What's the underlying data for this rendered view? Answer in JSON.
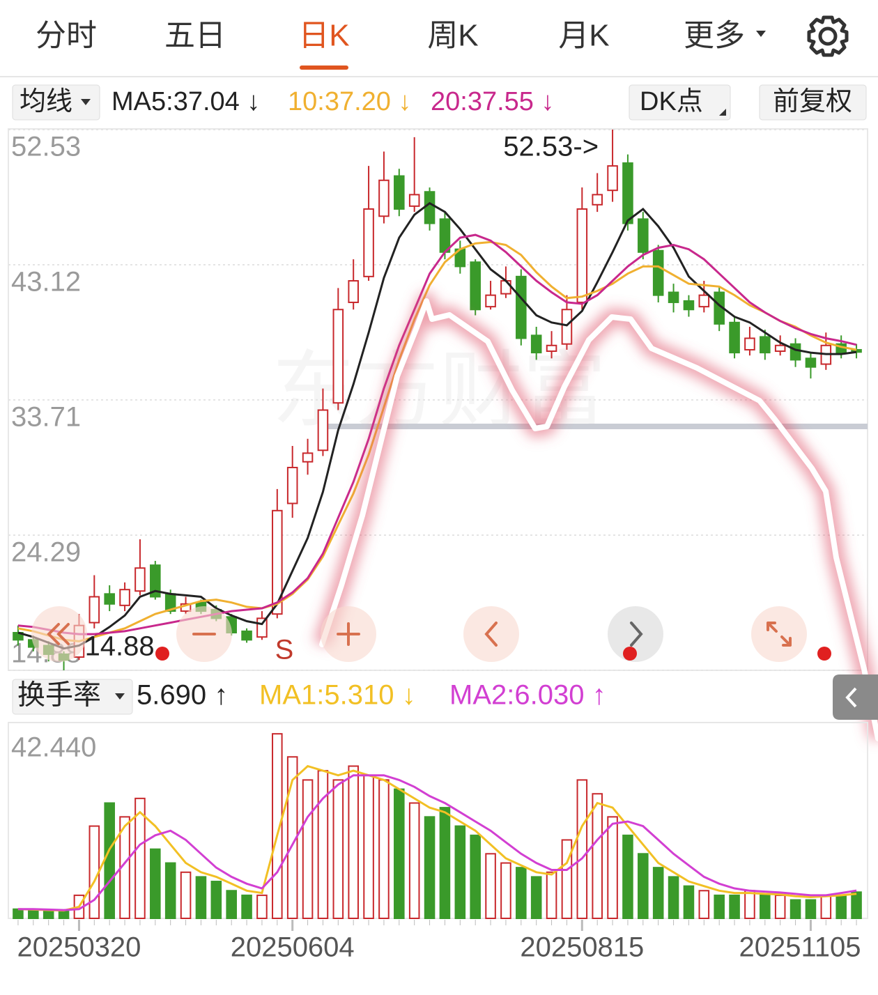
{
  "tabs": [
    "分时",
    "五日",
    "日K",
    "周K",
    "月K",
    "更多"
  ],
  "selected_tab": 2,
  "indicator_bar": {
    "selector": "均线",
    "ma5": "MA5:37.04 ↓",
    "ma10": "10:37.20 ↓",
    "ma20": "20:37.55 ↓",
    "dk": "DK点",
    "adjust": "前复权"
  },
  "volume_bar": {
    "selector": "换手率",
    "value": "5.690 ↑",
    "ma1": "MA1:5.310 ↓",
    "ma2": "MA2:6.030 ↑"
  },
  "watermark": "东方财富",
  "signal": "S",
  "chart_data": [
    {
      "type": "candlestick",
      "categories": [
        null,
        null,
        null,
        null,
        "20250320",
        null,
        null,
        null,
        null,
        null,
        null,
        null,
        null,
        null,
        null,
        null,
        null,
        null,
        "20250604",
        null,
        null,
        null,
        null,
        null,
        null,
        null,
        null,
        null,
        null,
        null,
        null,
        null,
        null,
        null,
        null,
        null,
        null,
        "20250815",
        null,
        null,
        null,
        null,
        null,
        null,
        null,
        null,
        null,
        null,
        null,
        null,
        null,
        null,
        "20251105",
        null,
        null,
        null
      ],
      "open": [
        17.5,
        17,
        16.6,
        16,
        15.8,
        18.2,
        20.2,
        19.4,
        20.4,
        22.2,
        20.2,
        19,
        19.6,
        19.1,
        18.6,
        17.6,
        17.2,
        18.8,
        26.5,
        29.4,
        30.2,
        33.5,
        40.5,
        42.3,
        46.5,
        49.3,
        47.2,
        48.2,
        46.3,
        44.2,
        43.3,
        40.2,
        41.1,
        42.3,
        38.2,
        37.1,
        37.6,
        40.5,
        47.3,
        48.3,
        50.2,
        46.3,
        44.1,
        41.2,
        40.6,
        40.2,
        41.2,
        39.1,
        37.2,
        38.1,
        37.1,
        37.6,
        36.6,
        36.2,
        37.6,
        37.2
      ],
      "high": [
        18,
        17.3,
        16.9,
        16.2,
        18.8,
        21.5,
        20.8,
        21,
        24,
        22.5,
        20.5,
        20,
        19.8,
        19.4,
        18.8,
        17.8,
        19,
        27.5,
        30.5,
        31,
        34.5,
        41.5,
        43.5,
        50,
        51,
        49.8,
        52,
        48.5,
        46.8,
        44.8,
        43.5,
        42,
        43,
        42.8,
        38.8,
        38.5,
        41,
        48.5,
        49.5,
        52.53,
        50.8,
        46.8,
        44.5,
        41.8,
        41,
        42,
        41.6,
        39.5,
        38.8,
        38.6,
        38.2,
        38,
        37,
        38.4,
        38.2,
        37.6
      ],
      "low": [
        16.6,
        16.2,
        15.5,
        14.88,
        15.6,
        17.8,
        19,
        19,
        20.1,
        19.8,
        18.8,
        18.8,
        18.8,
        18.3,
        17.3,
        16.8,
        17,
        18.5,
        25.5,
        28.5,
        29.8,
        33,
        40,
        42,
        46,
        46.5,
        46.8,
        45.5,
        43.5,
        42.5,
        39.6,
        40,
        40.8,
        37.5,
        36.5,
        36.6,
        37.2,
        40,
        46.8,
        47.5,
        45.5,
        43.5,
        40.5,
        39.8,
        39.5,
        39.8,
        38.5,
        36.6,
        36.8,
        36.5,
        36.8,
        36,
        35.2,
        35.8,
        36.6,
        36.6
      ],
      "close": [
        17,
        16.5,
        16,
        15.6,
        18,
        20,
        19.5,
        20.5,
        22,
        20,
        19,
        19.5,
        19,
        18.5,
        17.5,
        17,
        18.5,
        26,
        29,
        30,
        33,
        40,
        42,
        47,
        49,
        47,
        48,
        46,
        44,
        43,
        40,
        41,
        42,
        38,
        37,
        37.5,
        40,
        47,
        48,
        50,
        46,
        44,
        41,
        40.5,
        40,
        41,
        39,
        37,
        38,
        37,
        37.5,
        36.5,
        36,
        37.5,
        37,
        37.04
      ],
      "series": [
        {
          "color": "#222222",
          "values": [
            17.5,
            17.2,
            16.8,
            16.4,
            16.6,
            17.2,
            17.9,
            18.7,
            20,
            20.4,
            20.2,
            20.1,
            20,
            19.2,
            18.7,
            18.3,
            18.1,
            19.5,
            21.8,
            24.1,
            27.3,
            31.6,
            34.8,
            38.4,
            42.2,
            45,
            46.6,
            47.4,
            46.8,
            45.6,
            44.2,
            42.8,
            42,
            40.8,
            39.6,
            39.1,
            38.9,
            39.9,
            41.9,
            44,
            46.2,
            47,
            45.8,
            44.3,
            42.3,
            41.3,
            40.3,
            39.5,
            39.1,
            38.4,
            37.7,
            37.2,
            37,
            36.9,
            36.9,
            37.04
          ]
        },
        {
          "color": "#f0b030",
          "values": [
            17.8,
            17.6,
            17.3,
            17,
            16.9,
            17.2,
            17.5,
            17.8,
            18.3,
            18.8,
            19.1,
            19.4,
            19.7,
            19.8,
            19.6,
            19.3,
            19.2,
            19.5,
            20.2,
            21.2,
            22.8,
            25,
            27.2,
            29.9,
            33.2,
            36.5,
            39.3,
            41.7,
            43.3,
            44.2,
            44.6,
            44.7,
            44.5,
            43.8,
            42.6,
            41.6,
            40.8,
            40.9,
            41.3,
            41.8,
            42.5,
            43,
            43,
            42.4,
            41.8,
            41.7,
            41.6,
            41,
            40.3,
            39.8,
            39.2,
            38.8,
            38.2,
            37.7,
            37.4,
            37.2
          ]
        },
        {
          "color": "#c8288c",
          "values": [
            18,
            17.9,
            17.7,
            17.5,
            17.4,
            17.4,
            17.5,
            17.6,
            17.8,
            18,
            18.2,
            18.4,
            18.6,
            18.8,
            19,
            19.1,
            19.2,
            19.6,
            20.3,
            21.3,
            23,
            25.5,
            28,
            31,
            34.5,
            37.5,
            40,
            42.5,
            44,
            45,
            45.2,
            44.8,
            44,
            43,
            42,
            41.2,
            40.5,
            40.4,
            41,
            42,
            43,
            43.8,
            44.3,
            44.5,
            44.2,
            43.5,
            42.5,
            41.5,
            40.5,
            39.8,
            39.2,
            38.7,
            38.3,
            38,
            37.8,
            37.55
          ]
        }
      ],
      "up_color": "#c8282c",
      "down_color": "#3a9a2a",
      "ylim": [
        14.88,
        52.53
      ],
      "yticks": [
        52.53,
        43.12,
        33.71,
        24.29,
        14.88
      ],
      "grid": true,
      "reference_line": 31.86,
      "annotations": [
        "52.53->",
        "14.88"
      ]
    },
    {
      "type": "bar",
      "values": [
        2,
        1.8,
        1.6,
        1.5,
        5,
        20,
        25,
        22,
        26,
        15,
        12,
        10,
        9,
        8,
        6,
        5,
        5,
        40,
        35,
        30,
        32,
        30,
        33,
        31,
        30,
        28,
        25,
        22,
        24,
        20,
        18,
        14,
        12,
        11,
        9,
        10,
        17,
        30,
        27,
        22,
        18,
        14,
        11,
        9,
        7,
        6,
        5,
        5,
        6,
        5,
        5,
        4,
        4,
        5,
        5,
        5.69
      ],
      "series": [
        {
          "color": "#f2c024",
          "values": [
            2,
            1.9,
            1.8,
            1.7,
            2.5,
            8,
            15,
            20,
            23,
            20,
            16,
            12,
            10,
            9,
            7.5,
            6,
            5.5,
            18,
            30,
            33,
            32,
            31,
            32,
            31,
            30,
            28,
            26,
            24,
            23,
            21,
            19,
            16,
            13,
            11.5,
            10,
            9.5,
            12,
            20,
            25,
            24,
            20,
            16,
            12,
            10,
            8,
            7,
            6,
            5.5,
            5.5,
            5.3,
            5.2,
            4.8,
            4.6,
            4.8,
            5,
            5.31
          ]
        },
        {
          "color": "#d23fd2",
          "values": [
            2,
            2,
            1.9,
            1.8,
            2,
            4,
            8,
            12,
            16,
            18,
            19,
            17,
            14,
            11,
            9,
            7.5,
            6.5,
            10,
            16,
            22,
            26,
            29,
            31,
            31,
            31,
            30,
            28.5,
            26.5,
            25,
            23,
            21,
            19,
            16.5,
            14,
            12,
            10.5,
            10.5,
            13,
            17,
            20.5,
            21,
            20,
            17,
            14,
            11.5,
            9,
            7.5,
            6.5,
            6,
            5.8,
            5.6,
            5.3,
            5,
            5,
            5.5,
            6.03
          ]
        }
      ],
      "ylim": [
        0,
        42.44
      ],
      "yticks": [
        {
          "value": 42.44,
          "label": "42.440"
        }
      ]
    }
  ]
}
